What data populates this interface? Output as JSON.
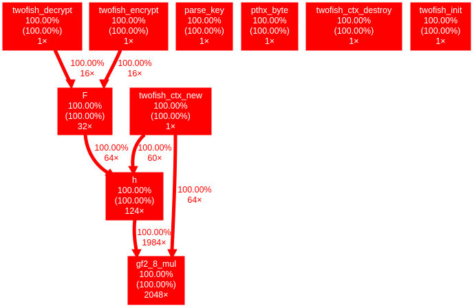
{
  "colors": {
    "node_fill": "#ff0000",
    "node_text": "#ffffff",
    "edge": "#ff0000",
    "background": "#ffffff"
  },
  "nodes": [
    {
      "id": "twofish_decrypt",
      "lines": [
        "twofish_decrypt",
        "100.00%",
        "(100.00%)",
        "1×"
      ]
    },
    {
      "id": "twofish_encrypt",
      "lines": [
        "twofish_encrypt",
        "100.00%",
        "(100.00%)",
        "1×"
      ]
    },
    {
      "id": "parse_key",
      "lines": [
        "parse_key",
        "100.00%",
        "(100.00%)",
        "1×"
      ]
    },
    {
      "id": "pthx_byte",
      "lines": [
        "pthx_byte",
        "100.00%",
        "(100.00%)",
        "1×"
      ]
    },
    {
      "id": "twofish_ctx_destroy",
      "lines": [
        "twofish_ctx_destroy",
        "100.00%",
        "(100.00%)",
        "1×"
      ]
    },
    {
      "id": "twofish_init",
      "lines": [
        "twofish_init",
        "100.00%",
        "(100.00%)",
        "1×"
      ]
    },
    {
      "id": "F",
      "lines": [
        "F",
        "100.00%",
        "(100.00%)",
        "32×"
      ]
    },
    {
      "id": "twofish_ctx_new",
      "lines": [
        "twofish_ctx_new",
        "100.00%",
        "(100.00%)",
        "1×"
      ]
    },
    {
      "id": "h",
      "lines": [
        "h",
        "100.00%",
        "(100.00%)",
        "124×"
      ]
    },
    {
      "id": "gf2_8_mul",
      "lines": [
        "gf2_8_mul",
        "100.00%",
        "(100.00%)",
        "2048×"
      ]
    }
  ],
  "edges": [
    {
      "from": "twofish_decrypt",
      "to": "F",
      "lines": [
        "100.00%",
        "16×"
      ]
    },
    {
      "from": "twofish_encrypt",
      "to": "F",
      "lines": [
        "100.00%",
        "16×"
      ]
    },
    {
      "from": "F",
      "to": "h",
      "lines": [
        "100.00%",
        "64×"
      ]
    },
    {
      "from": "twofish_ctx_new",
      "to": "h",
      "lines": [
        "100.00%",
        "60×"
      ]
    },
    {
      "from": "twofish_ctx_new",
      "to": "gf2_8_mul",
      "lines": [
        "100.00%",
        "64×"
      ]
    },
    {
      "from": "h",
      "to": "gf2_8_mul",
      "lines": [
        "100.00%",
        "1984×"
      ]
    }
  ]
}
